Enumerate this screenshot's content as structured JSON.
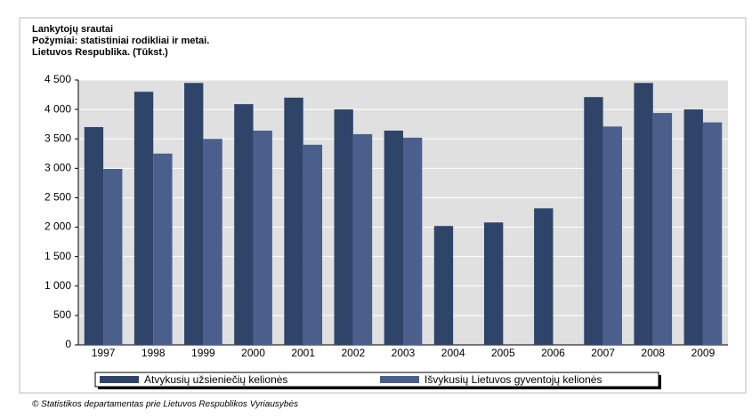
{
  "chart_data": {
    "type": "bar",
    "title": "Lankytojų srautai",
    "subtitle": [
      "Požymiai: statistiniai rodikliai ir metai.",
      "Lietuvos Respublika. (Tūkst.)"
    ],
    "categories": [
      "1997",
      "1998",
      "1999",
      "2000",
      "2001",
      "2002",
      "2003",
      "2004",
      "2005",
      "2006",
      "2007",
      "2008",
      "2009"
    ],
    "series": [
      {
        "name": "Atvykusių užsieniečių kelionės",
        "color": "#2e4468",
        "values": [
          3700,
          4300,
          4450,
          4090,
          4200,
          4000,
          3640,
          2020,
          2080,
          2320,
          4210,
          4450,
          4000
        ]
      },
      {
        "name": "Išvykusių Lietuvos gyventojų kelionės",
        "color": "#4a5f8c",
        "values": [
          2990,
          3250,
          3500,
          3640,
          3400,
          3580,
          3520,
          null,
          null,
          null,
          3710,
          3940,
          3780
        ]
      }
    ],
    "ylim": [
      0,
      4500
    ],
    "yticks": [
      0,
      500,
      {
        "value": 1000,
        "label": "1 000"
      },
      {
        "value": 1500,
        "label": "1 500"
      },
      {
        "value": 2000,
        "label": "2 000"
      },
      {
        "value": 2500,
        "label": "2 500"
      },
      {
        "value": 3000,
        "label": "3 000"
      },
      {
        "value": 3500,
        "label": "3 500"
      },
      {
        "value": 4000,
        "label": "4 000"
      },
      {
        "value": 4500,
        "label": "4 500"
      }
    ],
    "grid": true,
    "source": "© Statistikos departamentas prie Lietuvos Respublikos Vyriausybės"
  }
}
